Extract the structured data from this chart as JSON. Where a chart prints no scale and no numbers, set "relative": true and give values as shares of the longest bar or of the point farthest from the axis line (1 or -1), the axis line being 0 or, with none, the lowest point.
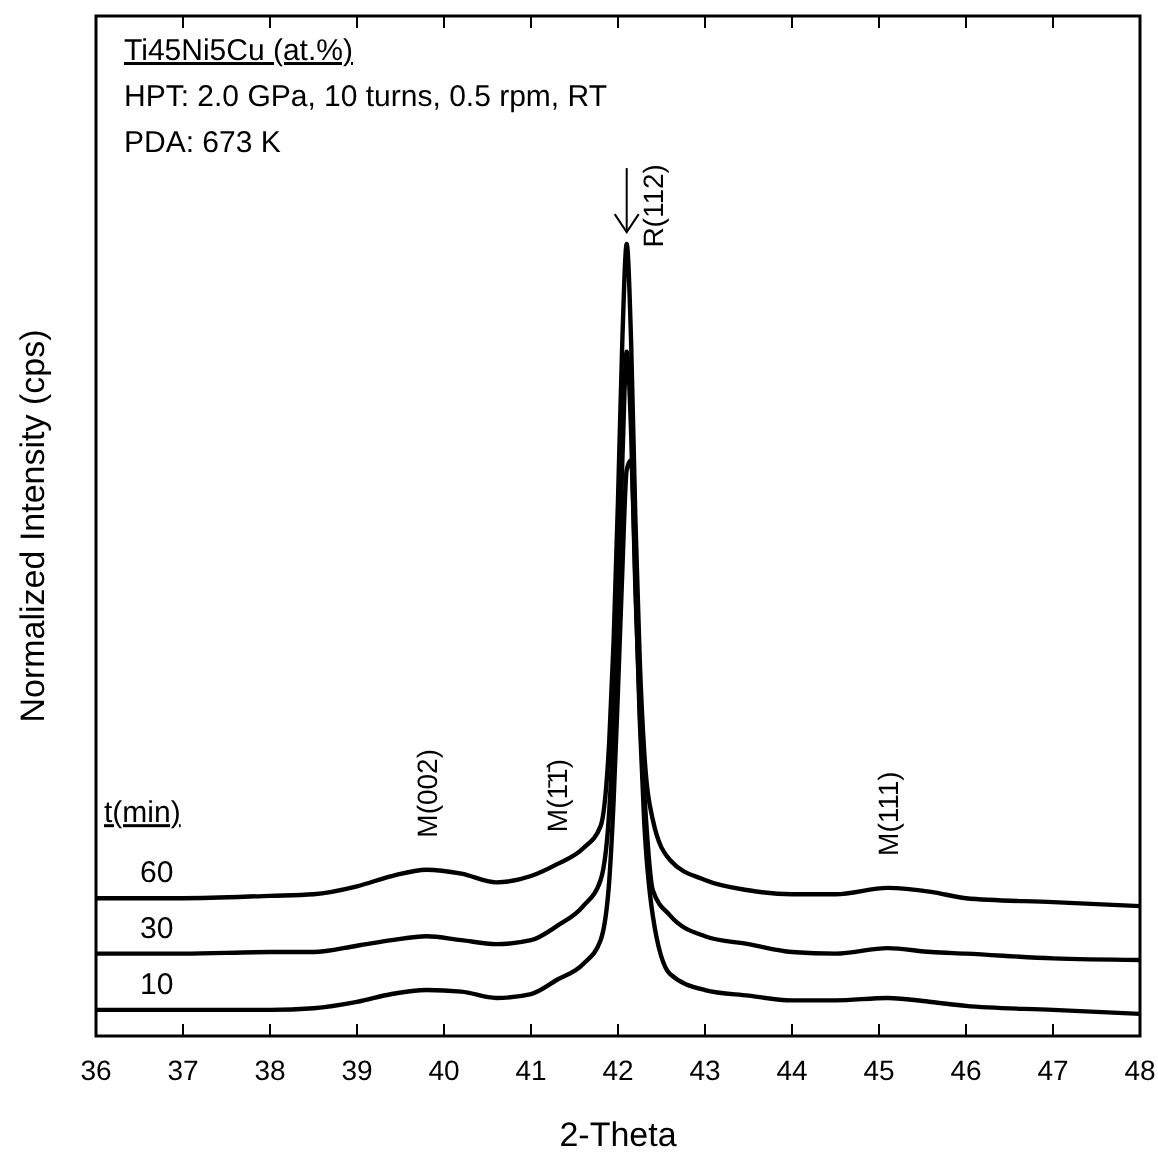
{
  "chart_data": {
    "type": "line",
    "relative": true,
    "xlabel": "2-Theta",
    "ylabel": "Normalized Intensity (cps)",
    "legend_title": "t(min)",
    "x": [
      36,
      37,
      38,
      38.5,
      39,
      39.4,
      39.8,
      40.2,
      40.6,
      41,
      41.3,
      41.6,
      41.8,
      41.9,
      41.95,
      42,
      42.05,
      42.1,
      42.15,
      42.2,
      42.25,
      42.3,
      42.4,
      42.6,
      43,
      43.5,
      44,
      44.5,
      45.1,
      45.6,
      46,
      47,
      48
    ],
    "xlim": [
      36,
      48
    ],
    "xticks": [
      36,
      37,
      38,
      39,
      40,
      41,
      42,
      43,
      44,
      45,
      46,
      47,
      48
    ],
    "legend": "left",
    "marker": "none",
    "line_style": "solid",
    "grid": false,
    "series": [
      {
        "name": "60",
        "color": "#000000",
        "values": [
          0.174,
          0.174,
          0.177,
          0.179,
          0.189,
          0.202,
          0.21,
          0.205,
          0.194,
          0.202,
          0.217,
          0.237,
          0.265,
          0.374,
          0.5,
          0.677,
          0.879,
          1.0,
          0.879,
          0.652,
          0.475,
          0.361,
          0.273,
          0.222,
          0.197,
          0.184,
          0.179,
          0.179,
          0.187,
          0.182,
          0.174,
          0.169,
          0.164
        ]
      },
      {
        "name": "30",
        "color": "#000000",
        "values": [
          0.104,
          0.104,
          0.106,
          0.106,
          0.114,
          0.121,
          0.126,
          0.121,
          0.116,
          0.121,
          0.139,
          0.164,
          0.197,
          0.285,
          0.399,
          0.551,
          0.727,
          0.864,
          0.765,
          0.563,
          0.412,
          0.311,
          0.184,
          0.152,
          0.126,
          0.116,
          0.106,
          0.104,
          0.111,
          0.106,
          0.104,
          0.098,
          0.096
        ]
      },
      {
        "name": "10",
        "color": "#000000",
        "values": [
          0.033,
          0.033,
          0.033,
          0.035,
          0.043,
          0.053,
          0.058,
          0.056,
          0.048,
          0.053,
          0.071,
          0.091,
          0.121,
          0.197,
          0.298,
          0.437,
          0.588,
          0.715,
          0.727,
          0.576,
          0.399,
          0.273,
          0.152,
          0.078,
          0.058,
          0.051,
          0.045,
          0.045,
          0.048,
          0.043,
          0.038,
          0.033,
          0.028
        ]
      }
    ],
    "annotations": [
      "Ti45Ni5Cu (at.%)",
      "HPT: 2.0 GPa, 10 turns, 0.5 rpm, RT",
      "PDA: 673 K",
      {
        "text": "M(002)",
        "x": 39.8,
        "y": 0.21
      },
      {
        "text": "M(1̄1̄)",
        "x": 41.3,
        "y": 0.217
      },
      {
        "text": "M(111)",
        "x": 45.1,
        "y": 0.187
      },
      {
        "text": "R(112)",
        "x": 42.1,
        "y": 1.0
      }
    ]
  }
}
